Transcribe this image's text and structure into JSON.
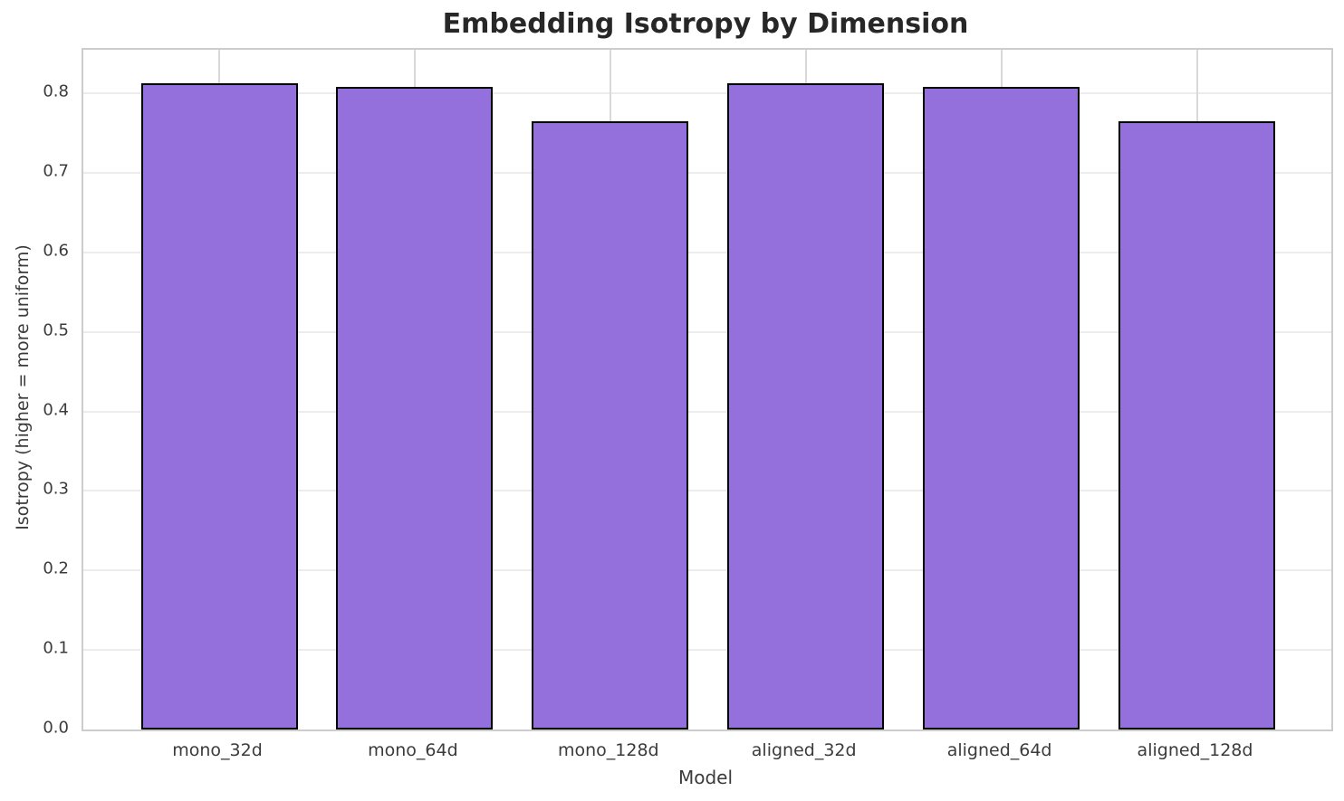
{
  "chart_data": {
    "type": "bar",
    "title": "Embedding Isotropy by Dimension",
    "xlabel": "Model",
    "ylabel": "Isotropy (higher = more uniform)",
    "categories": [
      "mono_32d",
      "mono_64d",
      "mono_128d",
      "aligned_32d",
      "aligned_64d",
      "aligned_128d"
    ],
    "values": [
      0.813,
      0.808,
      0.765,
      0.813,
      0.808,
      0.765
    ],
    "ylim": [
      0,
      0.855
    ],
    "ytick_values": [
      0.0,
      0.1,
      0.2,
      0.3,
      0.4,
      0.5,
      0.6,
      0.7,
      0.8
    ],
    "ytick_labels": [
      "0.0",
      "0.1",
      "0.2",
      "0.3",
      "0.4",
      "0.5",
      "0.6",
      "0.7",
      "0.8"
    ],
    "grid": true,
    "legend": "none",
    "colors": {
      "bar_fill": "#9370DB",
      "bar_edge": "#000000",
      "grid_horizontal": "#ececec",
      "grid_vertical": "#d9d9d9",
      "spine": "#cccccc",
      "title_text": "#272727",
      "tick_text": "#3b3b3b",
      "background": "#ffffff"
    }
  }
}
